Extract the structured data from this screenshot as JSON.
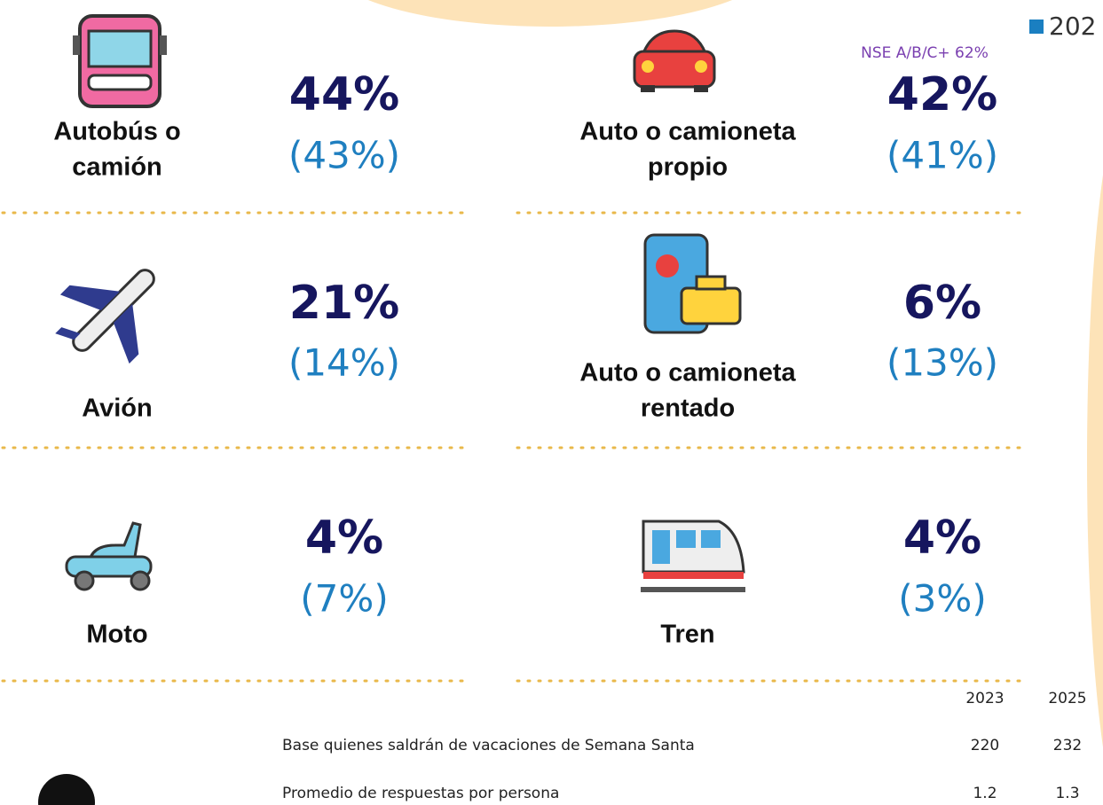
{
  "legend": {
    "label": "202"
  },
  "items": [
    {
      "label_lines": [
        "Autobús o",
        "camión"
      ],
      "value": "44%",
      "previous": "(43%)"
    },
    {
      "label_lines": [
        "Auto o camioneta",
        "propio"
      ],
      "value": "42%",
      "previous": "(41%)",
      "note": "NSE A/B/C+ 62%"
    },
    {
      "label_lines": [
        "Avión"
      ],
      "value": "21%",
      "previous": "(14%)"
    },
    {
      "label_lines": [
        "Auto o camioneta",
        "rentado"
      ],
      "value": "6%",
      "previous": "(13%)"
    },
    {
      "label_lines": [
        "Moto"
      ],
      "value": "4%",
      "previous": "(7%)"
    },
    {
      "label_lines": [
        "Tren"
      ],
      "value": "4%",
      "previous": "(3%)"
    }
  ],
  "table": {
    "header": [
      "2023",
      "2025"
    ],
    "rows": [
      [
        "Base quienes saldrán de vacaciones de Semana Santa",
        "220",
        "232"
      ],
      [
        "Promedio de respuestas por persona",
        "1.2",
        "1.3"
      ]
    ]
  }
}
